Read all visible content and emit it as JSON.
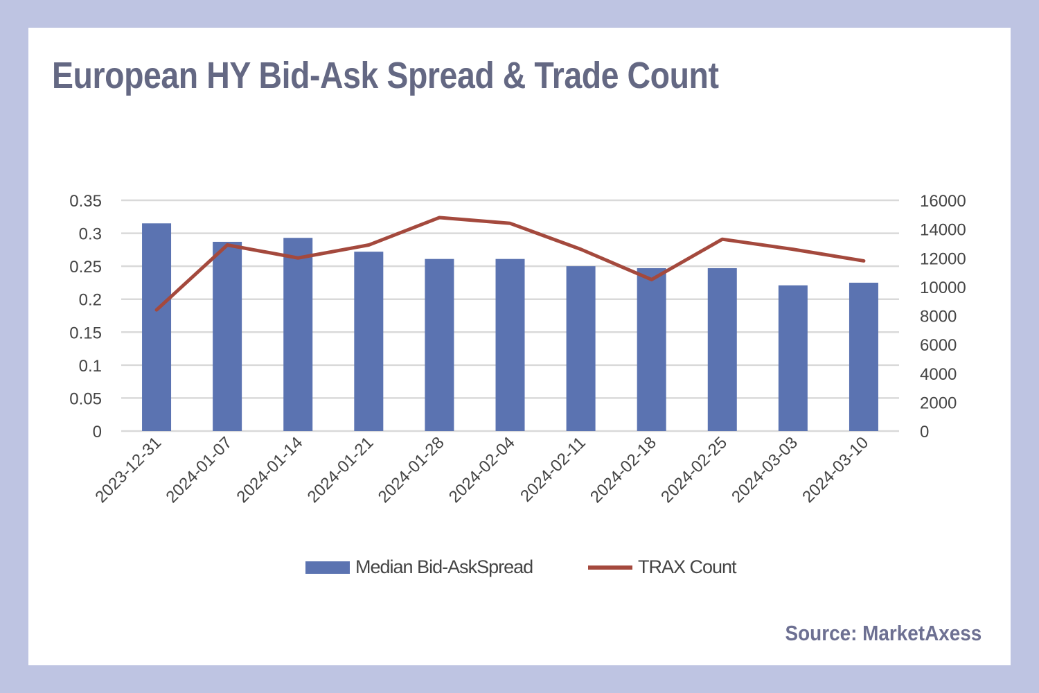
{
  "chart_data": {
    "type": "bar",
    "title": "European HY Bid-Ask Spread & Trade Count",
    "source": "Source: MarketAxess",
    "categories": [
      "2023-12-31",
      "2024-01-07",
      "2024-01-14",
      "2024-01-21",
      "2024-01-28",
      "2024-02-04",
      "2024-02-11",
      "2024-02-18",
      "2024-02-25",
      "2024-03-03",
      "2024-03-10"
    ],
    "series": [
      {
        "name": "Median  Bid-AskSpread",
        "type": "bar",
        "axis": "left",
        "color": "#5b73b1",
        "values": [
          0.315,
          0.287,
          0.293,
          0.272,
          0.261,
          0.261,
          0.25,
          0.247,
          0.247,
          0.221,
          0.225
        ]
      },
      {
        "name": "TRAX Count",
        "type": "line",
        "axis": "right",
        "color": "#a4493d",
        "values": [
          8400,
          12900,
          12000,
          12900,
          14800,
          14400,
          12600,
          10500,
          13300,
          12600,
          11800
        ]
      }
    ],
    "y_left": {
      "min": 0,
      "max": 0.35,
      "ticks": [
        "0",
        "0.05",
        "0.1",
        "0.15",
        "0.2",
        "0.25",
        "0.3",
        "0.35"
      ]
    },
    "y_right": {
      "min": 0,
      "max": 16000,
      "ticks": [
        "0",
        "2000",
        "4000",
        "6000",
        "8000",
        "10000",
        "12000",
        "14000",
        "16000"
      ]
    },
    "grid": true,
    "legend_position": "bottom"
  }
}
